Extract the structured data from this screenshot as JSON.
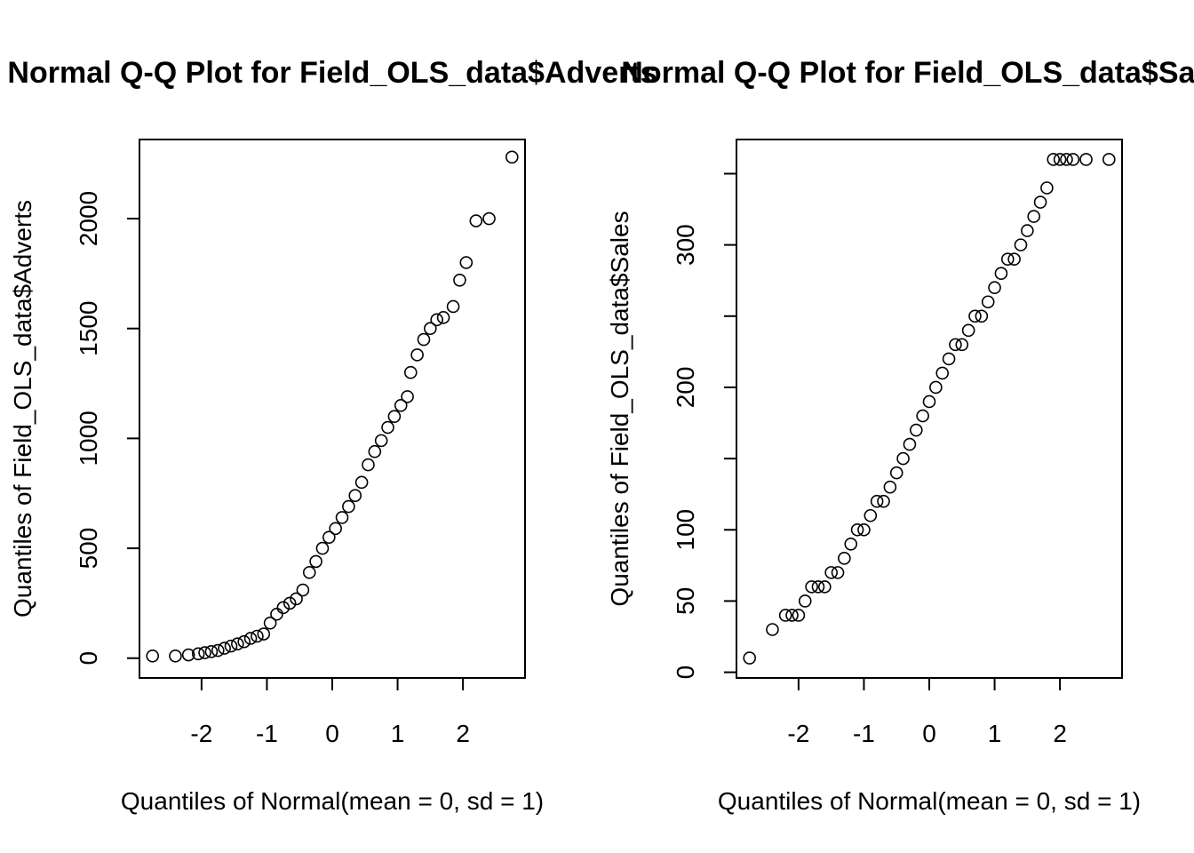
{
  "chart_data": [
    {
      "type": "scatter",
      "title": "Normal Q-Q Plot for Field_OLS_data$Adverts",
      "xlabel": "Quantiles of Normal(mean = 0, sd = 1)",
      "ylabel": "Quantiles of Field_OLS_data$Adverts",
      "xlim": [
        -2.95,
        2.95
      ],
      "ylim": [
        -90,
        2360
      ],
      "xticks": [
        -2,
        -1,
        0,
        1,
        2
      ],
      "xtick_labels": [
        "-2",
        "-1",
        "0",
        "1",
        "2"
      ],
      "yticks": [
        0,
        500,
        1000,
        1500,
        2000
      ],
      "ytick_labels": [
        "0",
        "500",
        "1000",
        "1500",
        "2000"
      ],
      "grid": false,
      "marker": "open-circle",
      "x": [
        -2.75,
        -2.4,
        -2.2,
        -2.05,
        -1.95,
        -1.85,
        -1.75,
        -1.65,
        -1.55,
        -1.45,
        -1.35,
        -1.25,
        -1.15,
        -1.05,
        -0.95,
        -0.85,
        -0.75,
        -0.65,
        -0.55,
        -0.45,
        -0.35,
        -0.25,
        -0.15,
        -0.05,
        0.05,
        0.15,
        0.25,
        0.35,
        0.45,
        0.55,
        0.65,
        0.75,
        0.85,
        0.95,
        1.05,
        1.15,
        1.2,
        1.3,
        1.4,
        1.5,
        1.6,
        1.7,
        1.85,
        1.95,
        2.05,
        2.2,
        2.4,
        2.75
      ],
      "y": [
        10,
        10,
        15,
        20,
        25,
        30,
        35,
        45,
        55,
        65,
        75,
        90,
        100,
        110,
        160,
        200,
        230,
        250,
        270,
        310,
        390,
        440,
        500,
        550,
        590,
        640,
        690,
        740,
        800,
        880,
        940,
        990,
        1050,
        1100,
        1150,
        1190,
        1300,
        1380,
        1450,
        1500,
        1540,
        1550,
        1600,
        1720,
        1800,
        1990,
        2000,
        2280
      ]
    },
    {
      "type": "scatter",
      "title": "Normal Q-Q Plot for Field_OLS_data$Sales",
      "xlabel": "Quantiles of Normal(mean = 0, sd = 1)",
      "ylabel": "Quantiles of Field_OLS_data$Sales",
      "xlim": [
        -2.95,
        2.95
      ],
      "ylim": [
        -4,
        374
      ],
      "xticks": [
        -2,
        -1,
        0,
        1,
        2
      ],
      "xtick_labels": [
        "-2",
        "-1",
        "0",
        "1",
        "2"
      ],
      "yticks": [
        0,
        50,
        100,
        150,
        200,
        250,
        300,
        350
      ],
      "ytick_labels": [
        "0",
        "50",
        "100",
        "",
        "200",
        "",
        "300",
        ""
      ],
      "grid": false,
      "marker": "open-circle",
      "x": [
        -2.75,
        -2.4,
        -2.2,
        -2.1,
        -2.0,
        -1.9,
        -1.8,
        -1.7,
        -1.6,
        -1.5,
        -1.4,
        -1.3,
        -1.2,
        -1.1,
        -1.0,
        -0.9,
        -0.8,
        -0.7,
        -0.6,
        -0.5,
        -0.4,
        -0.3,
        -0.2,
        -0.1,
        0.0,
        0.1,
        0.2,
        0.3,
        0.4,
        0.5,
        0.6,
        0.7,
        0.8,
        0.9,
        1.0,
        1.1,
        1.2,
        1.3,
        1.4,
        1.5,
        1.6,
        1.7,
        1.8,
        1.9,
        2.0,
        2.1,
        2.2,
        2.4,
        2.75
      ],
      "y": [
        10,
        30,
        40,
        40,
        40,
        50,
        60,
        60,
        60,
        70,
        70,
        80,
        90,
        100,
        100,
        110,
        120,
        120,
        130,
        140,
        150,
        160,
        170,
        180,
        190,
        200,
        210,
        220,
        230,
        230,
        240,
        250,
        250,
        260,
        270,
        280,
        290,
        290,
        300,
        310,
        320,
        330,
        340,
        360,
        360,
        360,
        360,
        360,
        360
      ]
    }
  ]
}
